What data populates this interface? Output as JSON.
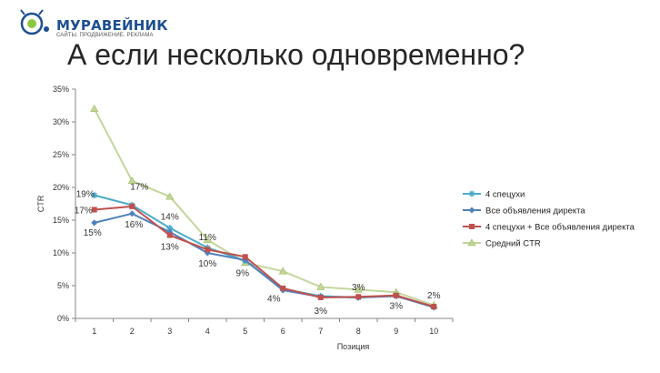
{
  "logo": {
    "brand": "МУРАВЕЙНИК",
    "tagline": "САЙТЫ. ПРОДВИЖЕНИЕ. РЕКЛАМА"
  },
  "slide": {
    "title": "А если несколько одновременно?"
  },
  "colors": {
    "spec4": "#4bacc6",
    "all": "#4f81bd",
    "combo": "#c0504d",
    "avg": "#c3d69b"
  },
  "chart_data": {
    "type": "line",
    "xlabel": "Позиция",
    "ylabel": "CTR",
    "x": [
      1,
      2,
      3,
      4,
      5,
      6,
      7,
      8,
      9,
      10
    ],
    "ylim": [
      0,
      35
    ],
    "yticks": [
      "0%",
      "5%",
      "10%",
      "15%",
      "20%",
      "25%",
      "30%",
      "35%"
    ],
    "grid": false,
    "legend": "right",
    "series": [
      {
        "name": "4 спецухи",
        "values": [
          18.8,
          17.3,
          13.8,
          10.8,
          8.8,
          4.5,
          3.4,
          3.2,
          3.5,
          1.7
        ]
      },
      {
        "name": "Все объявления директа",
        "values": [
          14.6,
          16.0,
          13.2,
          10.0,
          8.9,
          4.3,
          3.3,
          3.2,
          3.4,
          1.7
        ]
      },
      {
        "name": "4 спецухи + Все объявления директа",
        "values": [
          16.6,
          17.1,
          12.7,
          10.5,
          9.4,
          4.6,
          3.2,
          3.3,
          3.5,
          1.8
        ]
      },
      {
        "name": "Средний CTR",
        "values": [
          32.0,
          21.0,
          18.6,
          12.0,
          8.5,
          7.2,
          4.8,
          4.4,
          4.0,
          2.0
        ]
      }
    ],
    "data_labels": [
      {
        "text": "19%",
        "x": 1,
        "y": 18.8
      },
      {
        "text": "17%",
        "x": 1,
        "y": 16.6
      },
      {
        "text": "15%",
        "x": 1,
        "y": 14.6
      },
      {
        "text": "17%",
        "x": 2,
        "y": 17.3
      },
      {
        "text": "16%",
        "x": 2,
        "y": 16.0
      },
      {
        "text": "14%",
        "x": 3,
        "y": 13.8
      },
      {
        "text": "13%",
        "x": 3,
        "y": 12.7
      },
      {
        "text": "11%",
        "x": 4,
        "y": 10.8
      },
      {
        "text": "10%",
        "x": 4,
        "y": 10.0
      },
      {
        "text": "9%",
        "x": 5,
        "y": 8.8
      },
      {
        "text": "4%",
        "x": 6,
        "y": 4.5
      },
      {
        "text": "3%",
        "x": 7,
        "y": 3.2
      },
      {
        "text": "3%",
        "x": 8,
        "y": 3.3
      },
      {
        "text": "3%",
        "x": 9,
        "y": 3.4
      },
      {
        "text": "2%",
        "x": 10,
        "y": 1.8
      }
    ]
  }
}
